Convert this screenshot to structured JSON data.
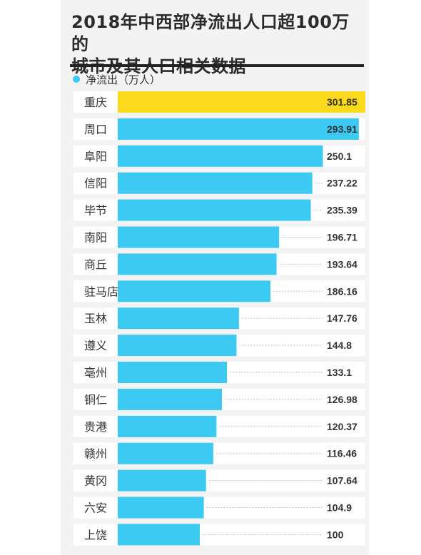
{
  "title_line1": "2018年中西部净流出人口超100万的",
  "title_line2": "城市及其人口相关数据",
  "colors": {
    "bar": "#3cc9f2",
    "highlight": "#fbd91c",
    "text": "#333333",
    "grid": "#bfbfbf",
    "row_bg": "#ffffff"
  },
  "chart_data": {
    "type": "bar",
    "orientation": "horizontal",
    "title": "2018年中西部净流出人口超100万的城市及其人口相关数据",
    "legend": [
      {
        "name": "净流出（万人）",
        "color": "#3cc9f2"
      }
    ],
    "legend_position": "top-left",
    "categories": [
      "重庆",
      "周口",
      "阜阳",
      "信阳",
      "毕节",
      "南阳",
      "商丘",
      "驻马店",
      "玉林",
      "遵义",
      "亳州",
      "铜仁",
      "贵港",
      "赣州",
      "黄冈",
      "六安",
      "上饶"
    ],
    "value_labels": [
      "301.85",
      "293.91",
      "250.1",
      "237.22",
      "235.39",
      "196.71",
      "193.64",
      "186.16",
      "147.76",
      "144.8",
      "133.1",
      "126.98",
      "120.37",
      "116.46",
      "107.64",
      "104.9",
      "100"
    ],
    "series": [
      {
        "name": "净流出（万人）",
        "values": [
          301.85,
          293.91,
          250.1,
          237.22,
          235.39,
          196.71,
          193.64,
          186.16,
          147.76,
          144.8,
          133.1,
          126.98,
          120.37,
          116.46,
          107.64,
          104.9,
          100
        ]
      }
    ],
    "highlight_index": 0,
    "xlim": [
      0,
      301.85
    ],
    "grid": false
  }
}
